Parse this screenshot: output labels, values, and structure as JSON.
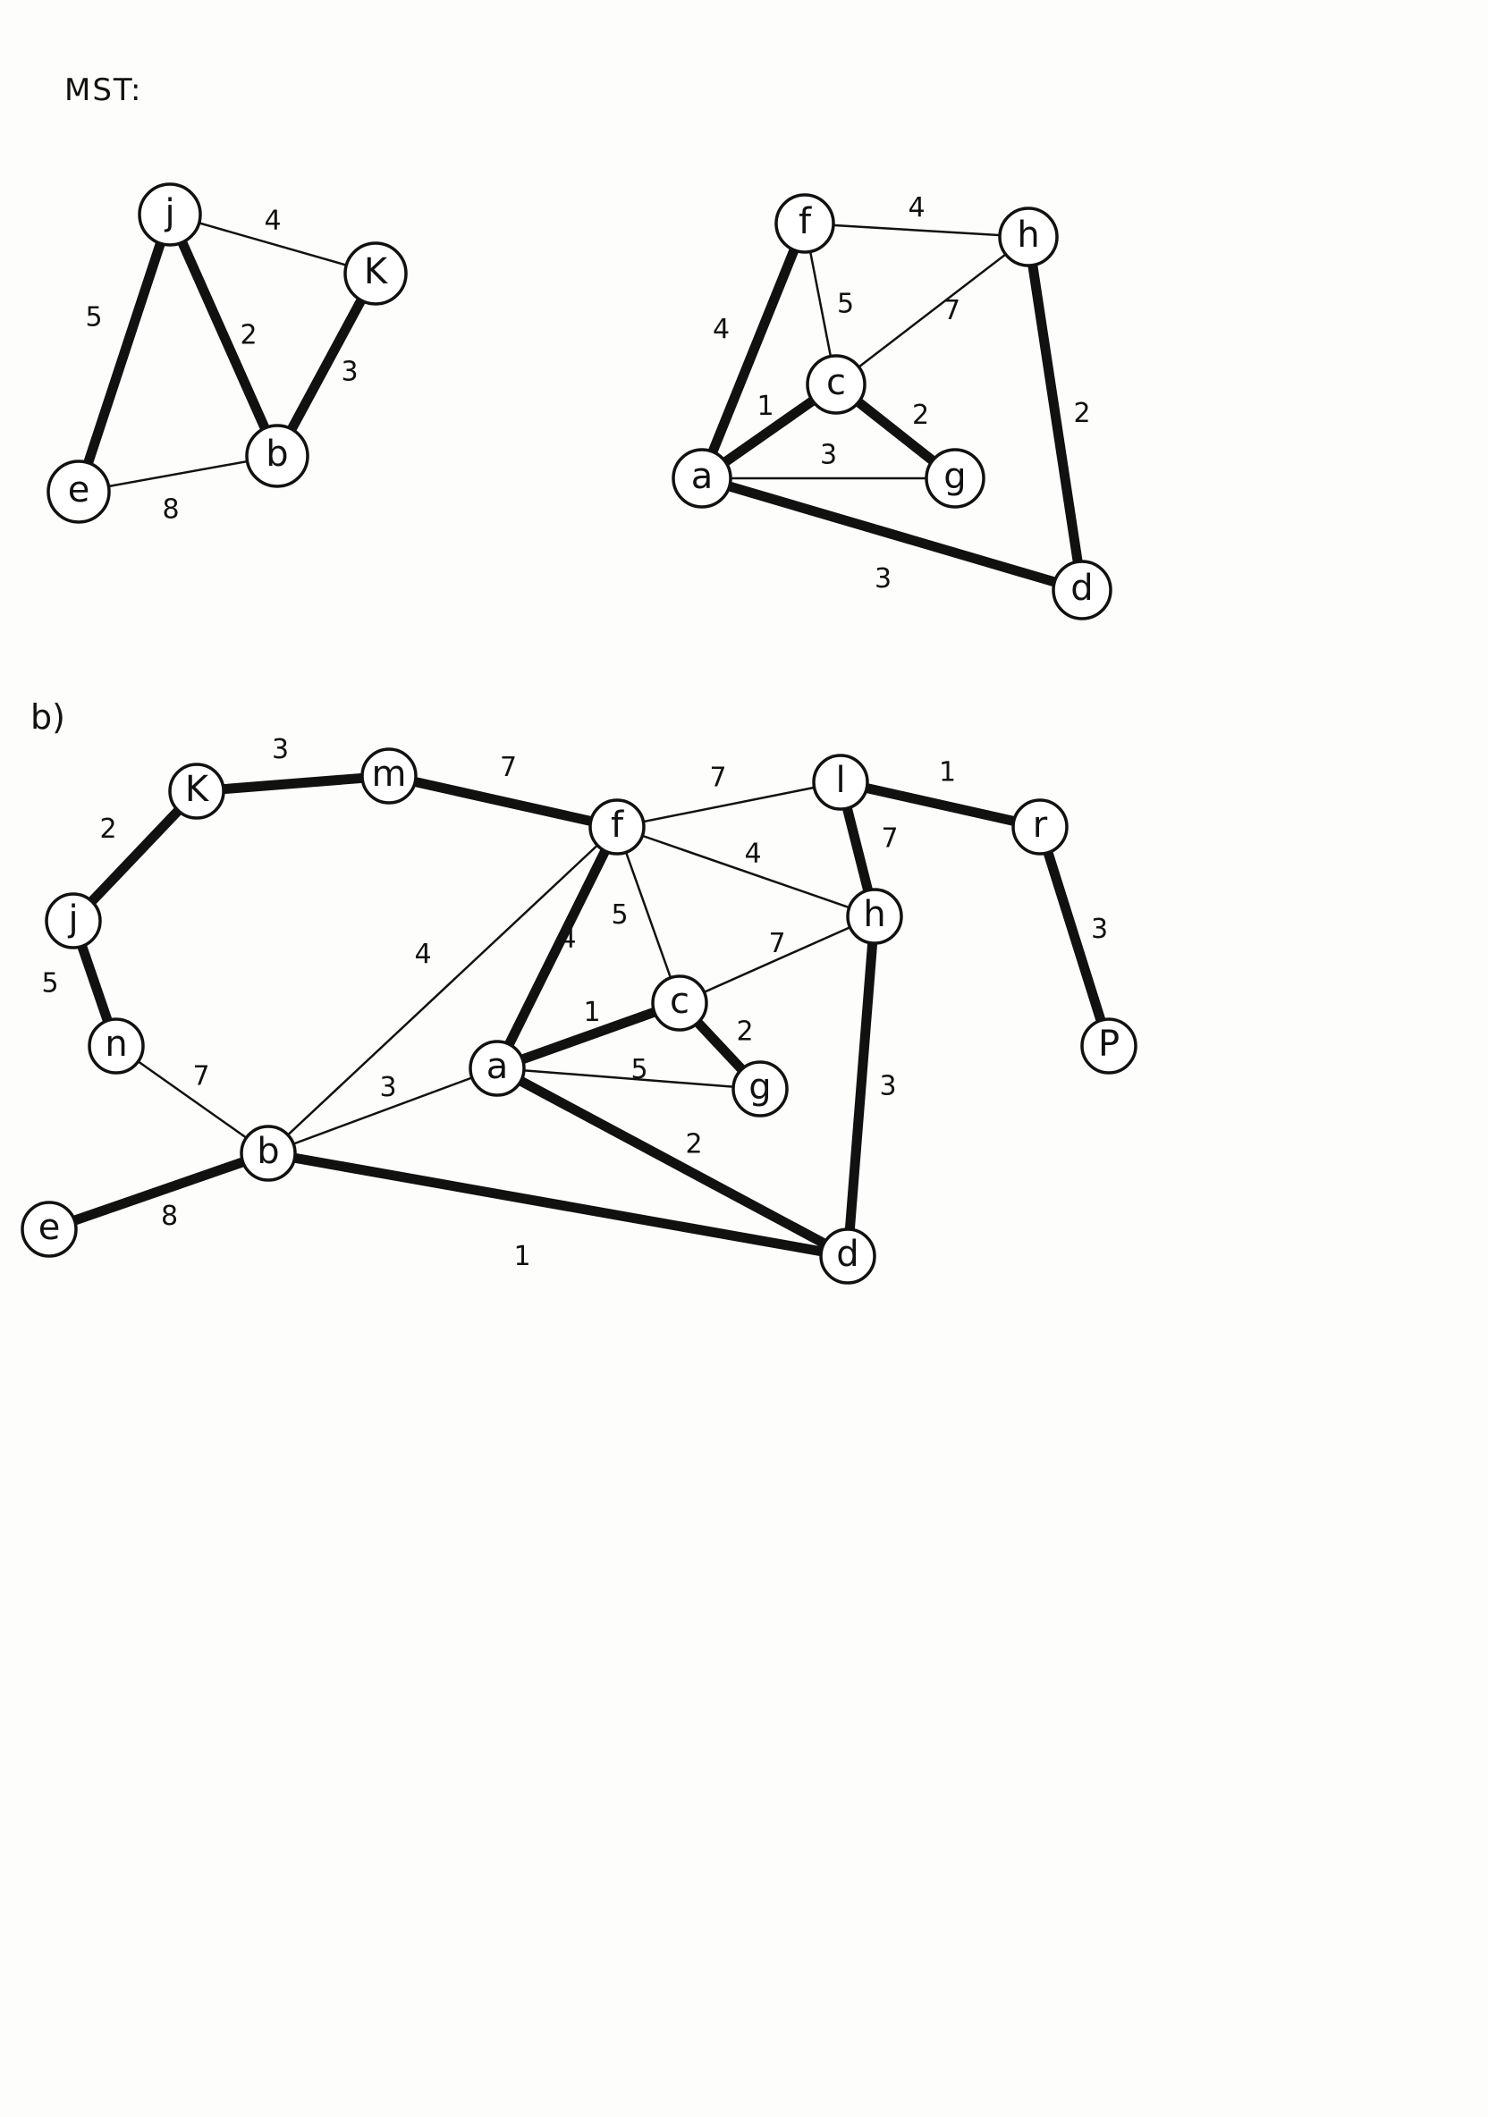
{
  "heading": "MST:",
  "part_b_label": "b)",
  "graphs": [
    {
      "id": "g1",
      "nodes": [
        "j",
        "K",
        "b",
        "e"
      ],
      "edges": [
        {
          "from": "j",
          "to": "K",
          "weight": "4",
          "mst": false
        },
        {
          "from": "j",
          "to": "b",
          "weight": "2",
          "mst": true
        },
        {
          "from": "j",
          "to": "e",
          "weight": "5",
          "mst": true
        },
        {
          "from": "K",
          "to": "b",
          "weight": "3",
          "mst": true
        },
        {
          "from": "e",
          "to": "b",
          "weight": "8",
          "mst": false
        }
      ]
    },
    {
      "id": "g2",
      "nodes": [
        "f",
        "h",
        "c",
        "a",
        "g",
        "d"
      ],
      "edges": [
        {
          "from": "f",
          "to": "h",
          "weight": "4",
          "mst": false
        },
        {
          "from": "f",
          "to": "c",
          "weight": "5",
          "mst": false
        },
        {
          "from": "f",
          "to": "a",
          "weight": "4",
          "mst": true
        },
        {
          "from": "h",
          "to": "c",
          "weight": "7",
          "mst": false
        },
        {
          "from": "h",
          "to": "d",
          "weight": "2",
          "mst": true
        },
        {
          "from": "c",
          "to": "a",
          "weight": "1",
          "mst": true
        },
        {
          "from": "c",
          "to": "g",
          "weight": "2",
          "mst": true
        },
        {
          "from": "a",
          "to": "g",
          "weight": "3",
          "mst": false
        },
        {
          "from": "a",
          "to": "d",
          "weight": "3",
          "mst": true
        }
      ]
    },
    {
      "id": "g3",
      "nodes": [
        "K",
        "m",
        "f",
        "l",
        "r",
        "j",
        "h",
        "n",
        "c",
        "a",
        "g",
        "P",
        "b",
        "e",
        "d"
      ],
      "edges": [
        {
          "from": "K",
          "to": "m",
          "weight": "3",
          "mst": true
        },
        {
          "from": "m",
          "to": "f",
          "weight": "7",
          "mst": true
        },
        {
          "from": "f",
          "to": "l",
          "weight": "7",
          "mst": false
        },
        {
          "from": "l",
          "to": "r",
          "weight": "1",
          "mst": true
        },
        {
          "from": "K",
          "to": "j",
          "weight": "2",
          "mst": true
        },
        {
          "from": "l",
          "to": "h",
          "weight": "7",
          "mst": true
        },
        {
          "from": "r",
          "to": "P",
          "weight": "3",
          "mst": true
        },
        {
          "from": "f",
          "to": "h",
          "weight": "4",
          "mst": false
        },
        {
          "from": "j",
          "to": "n",
          "weight": "5",
          "mst": true
        },
        {
          "from": "f",
          "to": "c",
          "weight": "5",
          "mst": false
        },
        {
          "from": "f",
          "to": "b",
          "weight": "4",
          "mst": false
        },
        {
          "from": "f",
          "to": "a",
          "weight": "4",
          "mst": true
        },
        {
          "from": "h",
          "to": "c",
          "weight": "7",
          "mst": false
        },
        {
          "from": "c",
          "to": "a",
          "weight": "1",
          "mst": true
        },
        {
          "from": "c",
          "to": "g",
          "weight": "2",
          "mst": true
        },
        {
          "from": "a",
          "to": "g",
          "weight": "5",
          "mst": false
        },
        {
          "from": "h",
          "to": "d",
          "weight": "3",
          "mst": true
        },
        {
          "from": "n",
          "to": "b",
          "weight": "7",
          "mst": false
        },
        {
          "from": "b",
          "to": "a",
          "weight": "3",
          "mst": false
        },
        {
          "from": "a",
          "to": "d",
          "weight": "2",
          "mst": true
        },
        {
          "from": "e",
          "to": "b",
          "weight": "8",
          "mst": true
        },
        {
          "from": "b",
          "to": "d",
          "weight": "1",
          "mst": true
        }
      ]
    }
  ]
}
